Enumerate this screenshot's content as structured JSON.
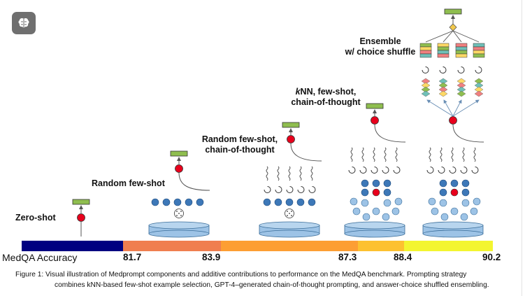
{
  "stages": [
    {
      "label": "Zero-shot"
    },
    {
      "label": "Random few-shot"
    },
    {
      "label": "Random few-shot,",
      "label_line2": "chain-of-thought"
    },
    {
      "label": "kNN, few-shot,",
      "label_italic": "k",
      "label_rest": "NN, few-shot,",
      "label_line2": "chain-of-thought"
    },
    {
      "label": "Ensemble",
      "label_line2": "w/ choice shuffle"
    }
  ],
  "axis": {
    "title": "MedQA Accuracy",
    "ticks": [
      "81.7",
      "83.9",
      "87.3",
      "88.4",
      "90.2"
    ]
  },
  "colors": {
    "bar": [
      "#000080",
      "#f07e4f",
      "#fd9e33",
      "#fdc130",
      "#f3f530"
    ],
    "query_dot": "#e8001c",
    "example_dot": "#3d78b8",
    "light_dot": "#9dc3e6",
    "database": "#9dc3e6",
    "output_box": "#8fbe4f"
  },
  "caption": {
    "line1": "Figure 1: Visual illustration of Medprompt components and additive contributions to performance on the MedQA benchmark. Prompting strategy",
    "line2": "combines kNN-based few-shot example selection, GPT-4–generated chain-of-thought prompting, and answer-choice shuffled ensembling."
  }
}
